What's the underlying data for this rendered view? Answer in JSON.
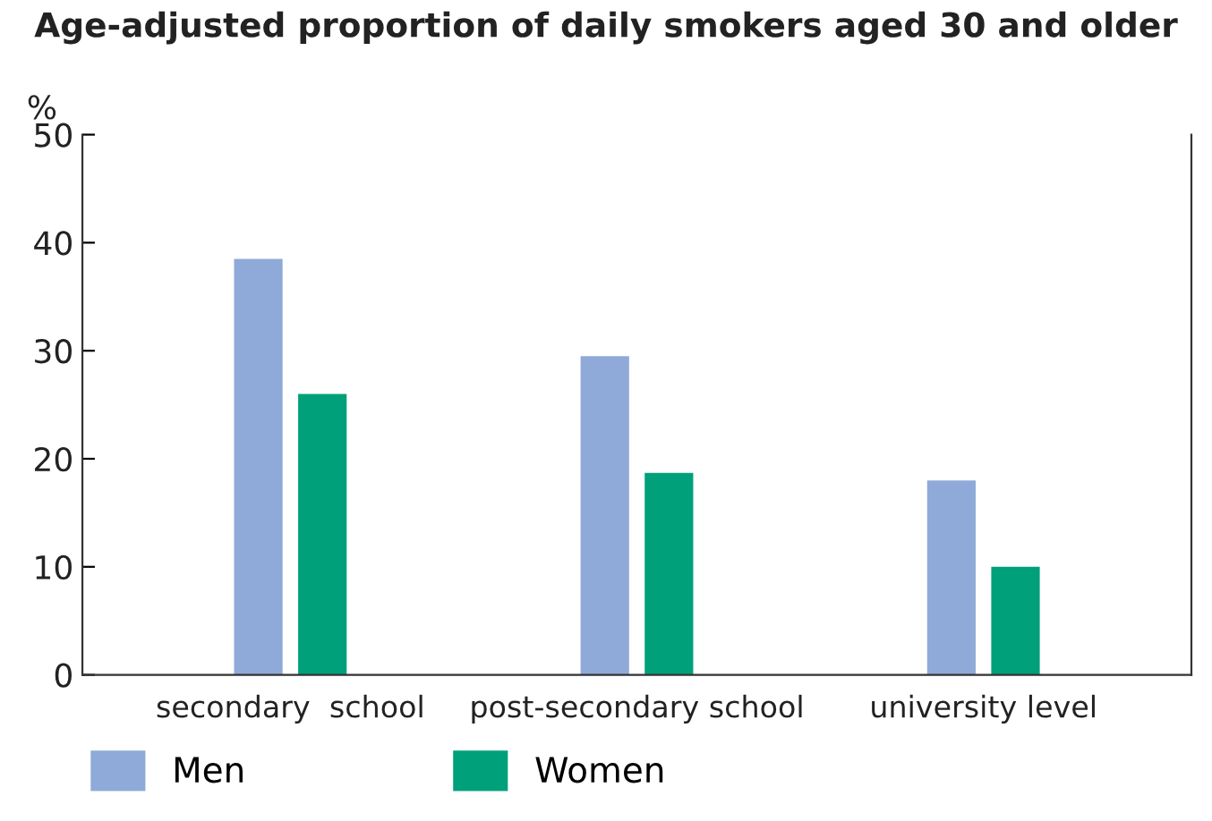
{
  "chart_data": {
    "type": "bar",
    "title": "Age-adjusted proportion of daily smokers aged 30 and older",
    "ylabel": "%",
    "categories": [
      "secondary  school",
      "post-secondary school",
      "university level"
    ],
    "series": [
      {
        "name": "Men",
        "color": "#8faad8",
        "values": [
          38.5,
          29.5,
          18
        ]
      },
      {
        "name": "Women",
        "color": "#00a07a",
        "values": [
          26,
          18.7,
          10
        ]
      }
    ],
    "ylim": [
      0,
      50
    ],
    "yticks": [
      0,
      10,
      20,
      30,
      40,
      50
    ],
    "grid": false,
    "legend": "bottom"
  }
}
